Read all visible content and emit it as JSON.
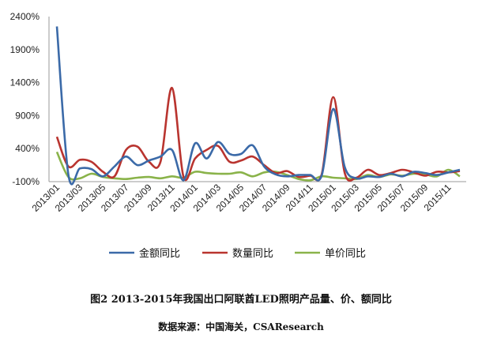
{
  "chart_data": {
    "type": "line",
    "title": "",
    "xlabel": "",
    "ylabel": "",
    "ylim": [
      -100,
      2400
    ],
    "yticks": [
      "-100%",
      "400%",
      "900%",
      "1400%",
      "1900%",
      "2400%"
    ],
    "ytick_values": [
      -100,
      400,
      900,
      1400,
      1900,
      2400
    ],
    "x": [
      "2013/01",
      "2013/02",
      "2013/03",
      "2013/04",
      "2013/05",
      "2013/06",
      "2013/07",
      "2013/08",
      "2013/09",
      "2013/10",
      "2013/11",
      "2013/12",
      "2014/01",
      "2014/02",
      "2014/03",
      "2014/04",
      "2014/05",
      "2014/06",
      "2014/07",
      "2014/08",
      "2014/09",
      "2014/10",
      "2014/11",
      "2014/12",
      "2015/01",
      "2015/02",
      "2015/03",
      "2015/04",
      "2015/05",
      "2015/06",
      "2015/07",
      "2015/08",
      "2015/09",
      "2015/10",
      "2015/11",
      "2015/12"
    ],
    "xtick_labels": [
      "2013/01",
      "2013/03",
      "2013/05",
      "2013/07",
      "2013/09",
      "2013/11",
      "2014/01",
      "2014/03",
      "2014/05",
      "2014/07",
      "2014/09",
      "2014/11",
      "2015/01",
      "2015/03",
      "2015/05",
      "2015/07",
      "2015/09",
      "2015/11"
    ],
    "grid": false,
    "legend_position": "bottom",
    "series": [
      {
        "name": "金额同比",
        "color": "#3b6aa8",
        "values": [
          2250,
          0,
          100,
          90,
          -20,
          130,
          280,
          150,
          220,
          280,
          380,
          -80,
          480,
          250,
          500,
          320,
          320,
          450,
          130,
          10,
          -20,
          0,
          0,
          -10,
          1000,
          120,
          -50,
          -20,
          -30,
          20,
          -20,
          50,
          30,
          0,
          40,
          80
        ]
      },
      {
        "name": "数量同比",
        "color": "#b9342f",
        "values": [
          580,
          130,
          230,
          200,
          50,
          -20,
          380,
          430,
          200,
          200,
          1320,
          -30,
          250,
          380,
          440,
          200,
          220,
          280,
          150,
          30,
          60,
          -30,
          -10,
          10,
          1180,
          30,
          -40,
          80,
          0,
          30,
          80,
          40,
          -10,
          50,
          40,
          60
        ]
      },
      {
        "name": "单价同比",
        "color": "#8ab34a",
        "values": [
          350,
          -30,
          -50,
          20,
          -30,
          -50,
          -60,
          -40,
          -30,
          -50,
          -20,
          -40,
          50,
          30,
          20,
          20,
          40,
          -20,
          40,
          50,
          0,
          -60,
          -80,
          -20,
          -40,
          -50,
          -60,
          0,
          -30,
          10,
          -10,
          20,
          10,
          -20,
          80,
          -20
        ]
      }
    ]
  },
  "caption": "图2 2013-2015年我国出口阿联酋LED照明产品量、价、额同比",
  "source": "数据来源：中国海关，CSAResearch"
}
